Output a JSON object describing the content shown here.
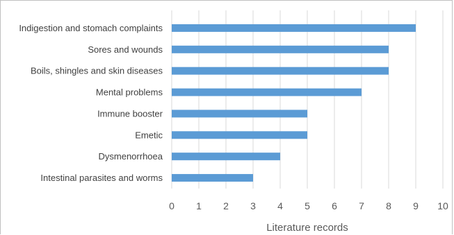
{
  "chart_data": {
    "type": "bar",
    "orientation": "horizontal",
    "categories": [
      "Indigestion and stomach complaints",
      "Sores and wounds",
      "Boils, shingles and skin diseases",
      "Mental problems",
      "Immune booster",
      "Emetic",
      "Dysmenorrhoea",
      "Intestinal parasites and worms"
    ],
    "values": [
      9,
      8,
      8,
      7,
      5,
      5,
      4,
      3
    ],
    "title": "",
    "xlabel": "Literature records",
    "ylabel": "",
    "xlim": [
      0,
      10
    ],
    "xticks": [
      "0",
      "1",
      "2",
      "3",
      "4",
      "5",
      "6",
      "7",
      "8",
      "9",
      "10"
    ],
    "grid": "vertical",
    "bar_color": "#5b9bd5"
  }
}
